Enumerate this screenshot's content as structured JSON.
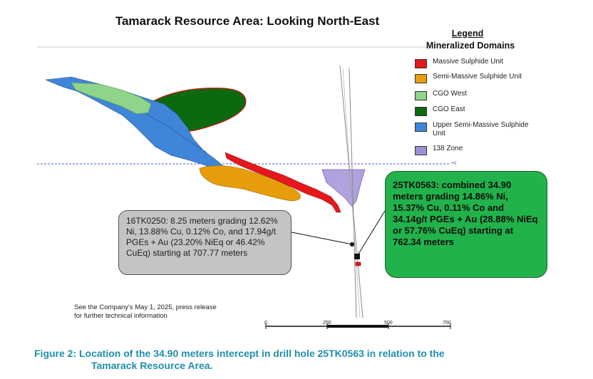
{
  "title": "Tamarack Resource Area: Looking North-East",
  "legend": {
    "heading": "Legend",
    "subheading": "Mineralized Domains",
    "items": [
      {
        "label": "Massive Sulphide Unit",
        "color": "#e8171b"
      },
      {
        "label": "Semi-Massive Sulphide Unit",
        "color": "#e79d0b"
      },
      {
        "label": "CGO West",
        "color": "#8fd48a"
      },
      {
        "label": "CGO East",
        "color": "#0a6a10"
      },
      {
        "label": "Upper Semi-Massive Sulphide Unit",
        "color": "#3f86d9"
      },
      {
        "label": "138 Zone",
        "color": "#9f8fd6"
      }
    ]
  },
  "reference_level": "+0",
  "callouts": {
    "hole_16TK0250": "16TK0250: 8.25 meters grading 12.62% Ni, 13.88% Cu, 0.12% Co, and 17.94g/t PGEs + Au (23.20% NiEq or 46.42% CuEq) starting at 707.77 meters",
    "hole_25TK0563": "25TK0563: combined 34.90 meters grading 14.86% Ni, 15.37% Cu, 0.11% Co and 34.14g/t PGEs + Au (28.88% NiEq or 57.76% CuEq) starting at 762.34 meters"
  },
  "note": {
    "line1": "See the Company's May 1, 2025, press release",
    "line2": "for further technical information"
  },
  "scale_bar": {
    "labels": [
      "0",
      "250",
      "500",
      "750"
    ]
  },
  "caption": {
    "line1": "Figure 2: Location of the 34.90 meters intercept in drill hole 25TK0563 in relation to the",
    "line2": "Tamarack Resource Area."
  }
}
